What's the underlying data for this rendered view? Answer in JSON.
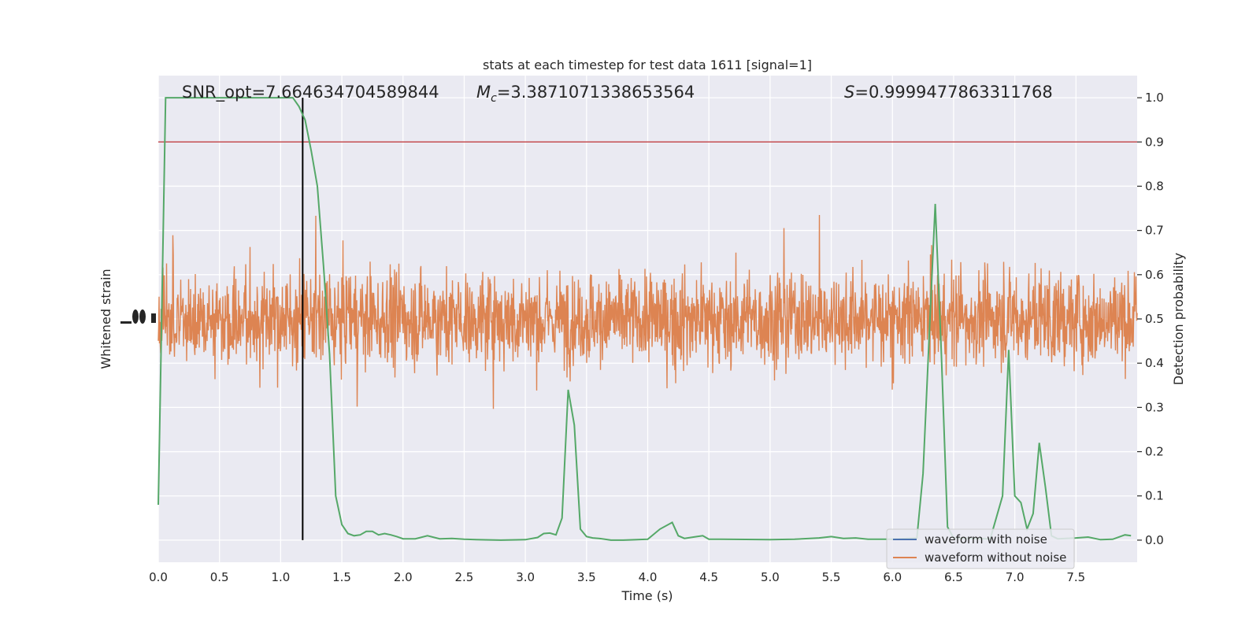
{
  "chart_data": {
    "type": "line",
    "title": "stats at each timestep for test data 1611 [signal=1]",
    "xlabel": "Time (s)",
    "ylabel_left": "Whitened strain",
    "ylabel_right": "Detection probability",
    "xlim": [
      0,
      8
    ],
    "ylim_right": [
      -0.05,
      1.05
    ],
    "x_ticks": [
      "0.0",
      "0.5",
      "1.0",
      "1.5",
      "2.0",
      "2.5",
      "3.0",
      "3.5",
      "4.0",
      "4.5",
      "5.0",
      "5.5",
      "6.0",
      "6.5",
      "7.0",
      "7.5"
    ],
    "y_ticks_right": [
      "0.0",
      "0.1",
      "0.2",
      "0.3",
      "0.4",
      "0.5",
      "0.6",
      "0.7",
      "0.8",
      "0.9",
      "1.0"
    ],
    "annotations": {
      "snr": "SNR_opt=7.664634704589844",
      "mc_symbol": "M",
      "mc_sub": "c",
      "mc_value": "=3.3871071338653564",
      "s_symbol": "S",
      "s_value": "=0.9999477863311768"
    },
    "threshold": 0.9,
    "threshold_color": "#c44e52",
    "event_time": 1.18,
    "legend_placement": "lower-right",
    "series": [
      {
        "name": "waveform with noise",
        "color": "#4c72b0"
      },
      {
        "name": "waveform without noise",
        "color": "#dd8452"
      }
    ],
    "detection_probability": {
      "color": "#55a868",
      "x": [
        0.0,
        0.06,
        0.1,
        0.3,
        0.5,
        0.7,
        0.9,
        1.0,
        1.1,
        1.15,
        1.2,
        1.25,
        1.3,
        1.35,
        1.4,
        1.45,
        1.5,
        1.55,
        1.6,
        1.65,
        1.7,
        1.75,
        1.8,
        1.85,
        1.9,
        1.95,
        2.0,
        2.1,
        2.2,
        2.3,
        2.4,
        2.5,
        2.6,
        2.8,
        3.0,
        3.1,
        3.15,
        3.2,
        3.25,
        3.3,
        3.35,
        3.4,
        3.45,
        3.5,
        3.55,
        3.6,
        3.7,
        3.8,
        4.0,
        4.1,
        4.2,
        4.25,
        4.3,
        4.4,
        4.45,
        4.5,
        4.6,
        5.0,
        5.2,
        5.4,
        5.5,
        5.6,
        5.7,
        5.8,
        6.0,
        6.2,
        6.25,
        6.3,
        6.35,
        6.4,
        6.45,
        6.5,
        6.8,
        6.9,
        6.95,
        7.0,
        7.05,
        7.1,
        7.15,
        7.2,
        7.25,
        7.3,
        7.35,
        7.5,
        7.6,
        7.7,
        7.8,
        7.9,
        7.95
      ],
      "y": [
        0.08,
        1.0,
        1.0,
        1.0,
        1.0,
        1.0,
        1.0,
        1.0,
        1.0,
        0.98,
        0.95,
        0.88,
        0.8,
        0.62,
        0.42,
        0.1,
        0.035,
        0.015,
        0.01,
        0.012,
        0.02,
        0.02,
        0.012,
        0.015,
        0.012,
        0.008,
        0.003,
        0.003,
        0.01,
        0.003,
        0.004,
        0.002,
        0.001,
        0.0,
        0.001,
        0.006,
        0.015,
        0.016,
        0.012,
        0.05,
        0.34,
        0.26,
        0.025,
        0.008,
        0.005,
        0.004,
        0.0,
        0.0,
        0.002,
        0.025,
        0.04,
        0.01,
        0.004,
        0.008,
        0.01,
        0.002,
        0.002,
        0.001,
        0.002,
        0.005,
        0.008,
        0.004,
        0.005,
        0.002,
        0.002,
        0.005,
        0.15,
        0.46,
        0.76,
        0.42,
        0.03,
        0.005,
        0.003,
        0.1,
        0.43,
        0.1,
        0.085,
        0.025,
        0.06,
        0.22,
        0.12,
        0.01,
        0.003,
        0.005,
        0.007,
        0.001,
        0.002,
        0.012,
        0.01
      ]
    }
  }
}
